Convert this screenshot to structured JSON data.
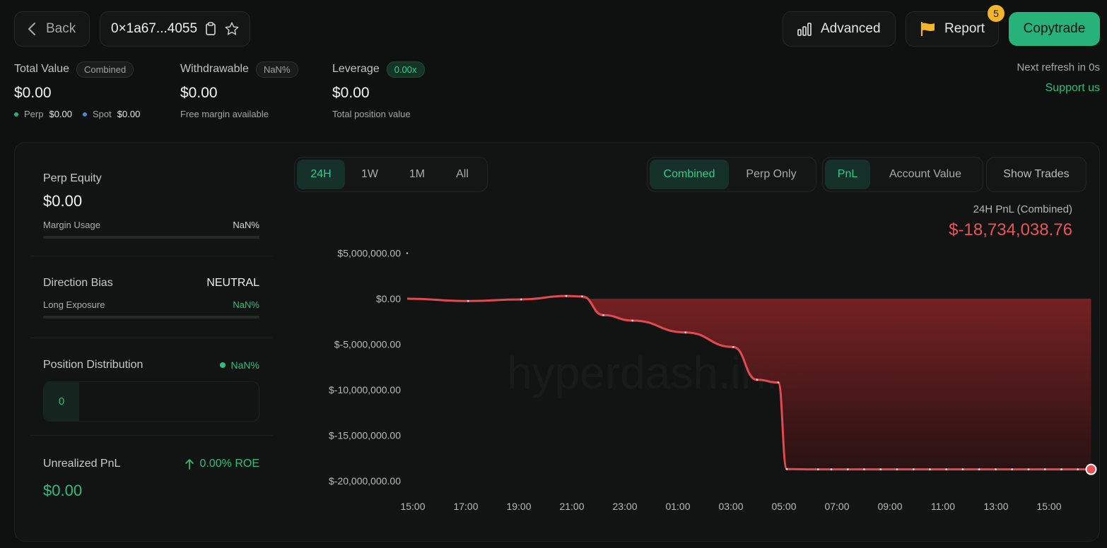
{
  "header": {
    "back_label": "Back",
    "address": "0×1a67...4055",
    "advanced_label": "Advanced",
    "report_label": "Report",
    "report_badge": "5",
    "copytrade_label": "Copytrade"
  },
  "stats": {
    "total_value": {
      "label": "Total Value",
      "pill": "Combined",
      "value": "$0.00",
      "perp_label": "Perp",
      "perp_value": "$0.00",
      "spot_label": "Spot",
      "spot_value": "$0.00"
    },
    "withdrawable": {
      "label": "Withdrawable",
      "pill": "NaN%",
      "value": "$0.00",
      "sub": "Free margin available"
    },
    "leverage": {
      "label": "Leverage",
      "pill": "0.00x",
      "value": "$0.00",
      "sub": "Total position value"
    },
    "refresh_text": "Next refresh in 0s",
    "support_link": "Support us"
  },
  "left_panel": {
    "perp_equity_label": "Perp Equity",
    "perp_equity_value": "$0.00",
    "margin_usage_label": "Margin Usage",
    "margin_usage_value": "NaN%",
    "direction_bias_label": "Direction Bias",
    "direction_bias_value": "NEUTRAL",
    "long_exposure_label": "Long Exposure",
    "long_exposure_value": "NaN%",
    "position_distribution_label": "Position Distribution",
    "position_distribution_value": "NaN%",
    "position_count": "0",
    "unrealized_pnl_label": "Unrealized PnL",
    "roe_value": "0.00% ROE",
    "unrealized_pnl_value": "$0.00"
  },
  "toolbar": {
    "ranges": [
      "24H",
      "1W",
      "1M",
      "All"
    ],
    "active_range": "24H",
    "scope": [
      "Combined",
      "Perp Only"
    ],
    "active_scope": "Combined",
    "metric": [
      "PnL",
      "Account Value"
    ],
    "active_metric": "PnL",
    "show_trades_label": "Show Trades"
  },
  "pnl_summary": {
    "title": "24H PnL (Combined)",
    "value": "$-18,734,038.76"
  },
  "watermark": "hyperdash.info",
  "colors": {
    "accent_green": "#27b27a",
    "loss_red": "#e9545a",
    "badge_yellow": "#f3b52a"
  },
  "chart_data": {
    "type": "area",
    "x_ticks": [
      "15:00",
      "17:00",
      "19:00",
      "21:00",
      "23:00",
      "01:00",
      "03:00",
      "05:00",
      "07:00",
      "09:00",
      "11:00",
      "13:00",
      "15:00"
    ],
    "y_ticks": [
      "$5,000,000.00",
      "$0.00",
      "$-5,000,000.00",
      "$-10,000,000.00",
      "$-15,000,000.00",
      "$-20,000,000.00"
    ],
    "y_tick_values": [
      5000000,
      0,
      -5000000,
      -10000000,
      -15000000,
      -20000000
    ],
    "ylim": [
      -20000000,
      5000000
    ],
    "series": [
      {
        "x_hours": [
          0,
          2.3,
          4.3,
          6,
          6.6,
          7.4,
          8.5,
          10.5,
          12.3,
          13.2,
          14,
          14.32,
          15.5,
          25.8
        ],
        "values": [
          0,
          -250000,
          -80000,
          300000,
          250000,
          -1800000,
          -2400000,
          -3700000,
          -5300000,
          -8900000,
          -9200000,
          -18700000,
          -18734038.76,
          -18734038.76
        ]
      }
    ]
  }
}
